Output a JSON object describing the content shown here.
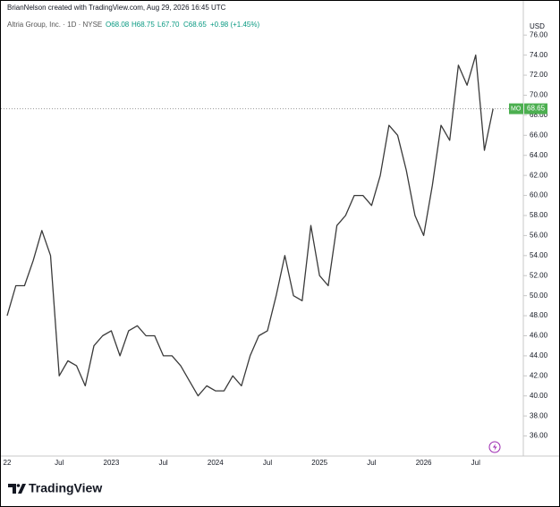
{
  "header": {
    "credit": "BrianNelson created with TradingView.com, Aug 29, 2026 16:45 UTC",
    "symbol": "Altria Group, Inc. · 1D · NYSE",
    "open": "O68.08",
    "high": "H68.75",
    "low": "L67.70",
    "close": "C68.65",
    "change": "+0.98 (+1.45%)"
  },
  "chart_data": {
    "type": "line",
    "currency": "USD",
    "symbol_tag": "MO",
    "color": "#3a3a3a",
    "categories": [
      "22",
      null,
      null,
      null,
      null,
      null,
      "Jul",
      null,
      null,
      null,
      null,
      null,
      "2023",
      null,
      null,
      null,
      null,
      null,
      "Jul",
      null,
      null,
      null,
      null,
      null,
      "2024",
      null,
      null,
      null,
      null,
      null,
      "Jul",
      null,
      null,
      null,
      null,
      null,
      "2025",
      null,
      null,
      null,
      null,
      null,
      "Jul",
      null,
      null,
      null,
      null,
      null,
      "2026",
      null,
      null,
      null,
      null,
      null,
      "Jul",
      null,
      null
    ],
    "values": [
      48,
      51,
      51,
      53.5,
      56.5,
      54,
      42,
      43.5,
      43,
      41,
      45,
      46,
      46.5,
      44,
      46.5,
      47,
      46,
      46,
      44,
      44,
      43,
      41.5,
      40,
      41,
      40.5,
      40.5,
      42,
      41,
      44,
      46,
      46.5,
      50,
      54,
      50,
      49.5,
      57,
      52,
      51,
      57,
      58,
      60,
      60,
      59,
      62,
      67,
      66,
      62.5,
      58,
      56,
      61,
      67,
      65.5,
      73,
      71,
      74,
      64.5,
      68.65
    ],
    "ylim": [
      34,
      79.5
    ],
    "yticks": [
      {
        "value": 36,
        "label": "36.00"
      },
      {
        "value": 38,
        "label": "38.00"
      },
      {
        "value": 40,
        "label": "40.00"
      },
      {
        "value": 42,
        "label": "42.00"
      },
      {
        "value": 44,
        "label": "44.00"
      },
      {
        "value": 46,
        "label": "46.00"
      },
      {
        "value": 48,
        "label": "48.00"
      },
      {
        "value": 50,
        "label": "50.00"
      },
      {
        "value": 52,
        "label": "52.00"
      },
      {
        "value": 54,
        "label": "54.00"
      },
      {
        "value": 56,
        "label": "56.00"
      },
      {
        "value": 58,
        "label": "58.00"
      },
      {
        "value": 60,
        "label": "60.00"
      },
      {
        "value": 62,
        "label": "62.00"
      },
      {
        "value": 64,
        "label": "64.00"
      },
      {
        "value": 66,
        "label": "66.00"
      },
      {
        "value": 68,
        "label": "68.00"
      },
      {
        "value": 70,
        "label": "70.00"
      },
      {
        "value": 72,
        "label": "72.00"
      },
      {
        "value": 74,
        "label": "74.00"
      },
      {
        "value": 76,
        "label": "76.00"
      }
    ]
  },
  "footer": {
    "brand": "TradingView"
  }
}
